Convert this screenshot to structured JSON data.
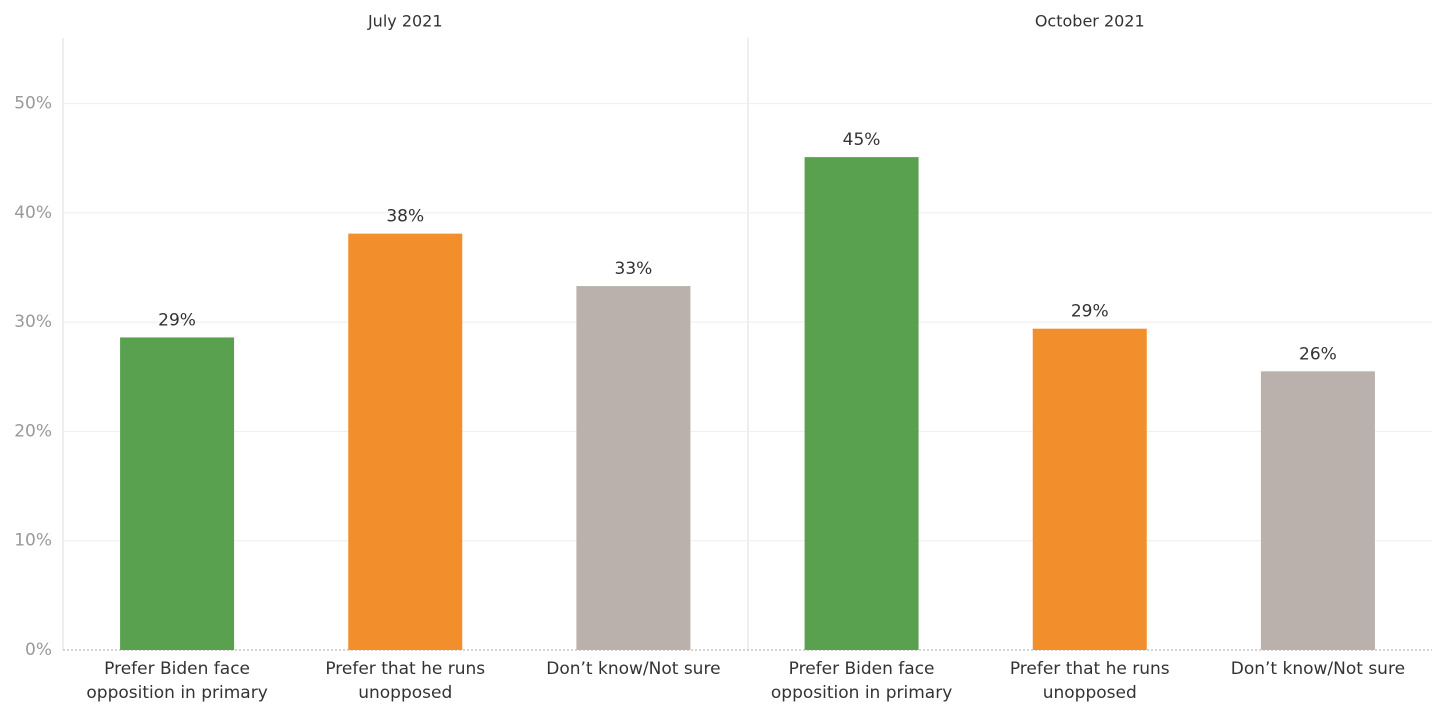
{
  "chart_data": {
    "type": "bar",
    "ylim": [
      0,
      56
    ],
    "yticks": [
      {
        "value": 0,
        "label": "0%"
      },
      {
        "value": 10,
        "label": "10%"
      },
      {
        "value": 20,
        "label": "20%"
      },
      {
        "value": 30,
        "label": "30%"
      },
      {
        "value": 40,
        "label": "40%"
      },
      {
        "value": 50,
        "label": "50%"
      }
    ],
    "grid": true,
    "panels": [
      {
        "title": "July 2021",
        "categories": [
          "Prefer Biden face opposition in primary",
          "Prefer that he runs unopposed",
          "Don’t know/Not sure"
        ],
        "values": [
          28.6,
          38.1,
          33.3
        ],
        "value_labels": [
          "29%",
          "38%",
          "33%"
        ],
        "colors": [
          "#59a14f",
          "#f28e2b",
          "#bab0ac"
        ]
      },
      {
        "title": "October 2021",
        "categories": [
          "Prefer Biden face opposition in primary",
          "Prefer that he runs unopposed",
          "Don’t know/Not sure"
        ],
        "values": [
          45.1,
          29.4,
          25.5
        ],
        "value_labels": [
          "45%",
          "29%",
          "26%"
        ],
        "colors": [
          "#59a14f",
          "#f28e2b",
          "#bab0ac"
        ]
      }
    ]
  }
}
